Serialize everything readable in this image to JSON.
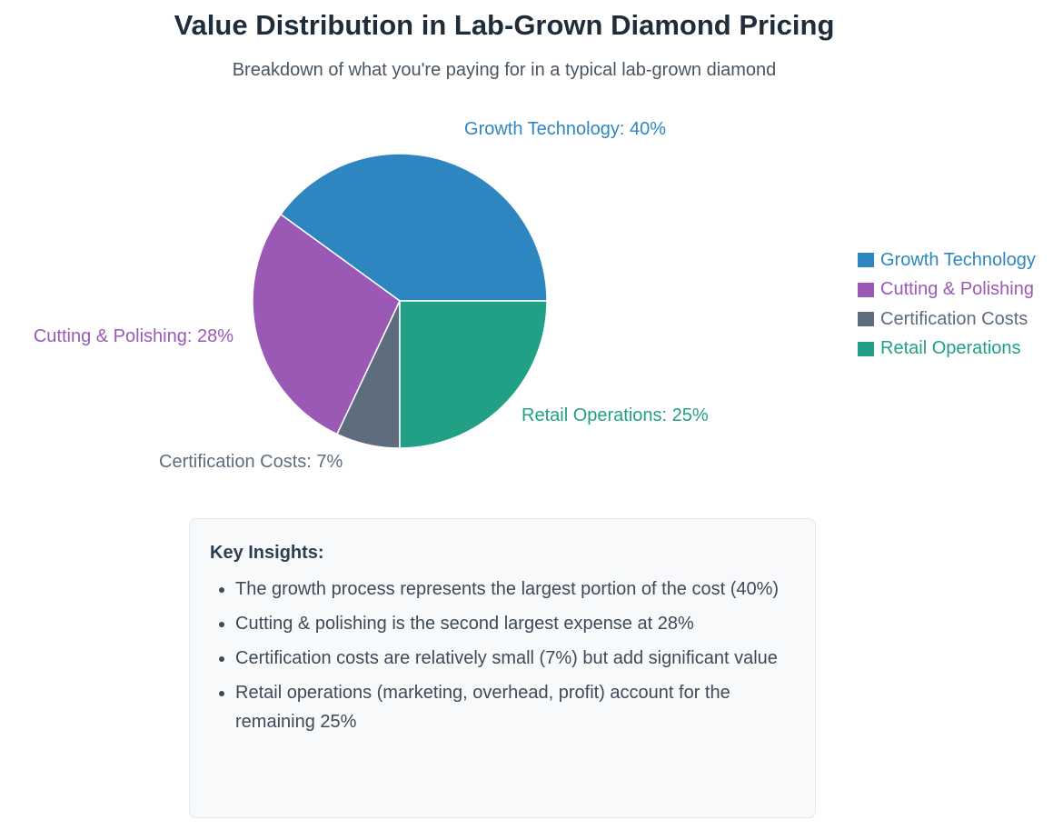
{
  "chart_data": {
    "type": "pie",
    "title": "Value Distribution in Lab-Grown Diamond Pricing",
    "subtitle": "Breakdown of what you're paying for in a typical lab-grown diamond",
    "slices": [
      {
        "name": "Growth Technology",
        "value": 40,
        "label": "Growth Technology: 40%",
        "color": "#2e86c1"
      },
      {
        "name": "Cutting & Polishing",
        "value": 28,
        "label": "Cutting & Polishing: 28%",
        "color": "#9b59b6"
      },
      {
        "name": "Certification Costs",
        "value": 7,
        "label": "Certification Costs: 7%",
        "color": "#5d6d7e"
      },
      {
        "name": "Retail Operations",
        "value": 25,
        "label": "Retail Operations: 25%",
        "color": "#21a085"
      }
    ],
    "legend_position": "right"
  },
  "insights": {
    "heading": "Key Insights:",
    "items": [
      "The growth process represents the largest portion of the cost (40%)",
      "Cutting & polishing is the second largest expense at 28%",
      "Certification costs are relatively small (7%) but add significant value",
      "Retail operations (marketing, overhead, profit) account for the remaining 25%"
    ]
  }
}
